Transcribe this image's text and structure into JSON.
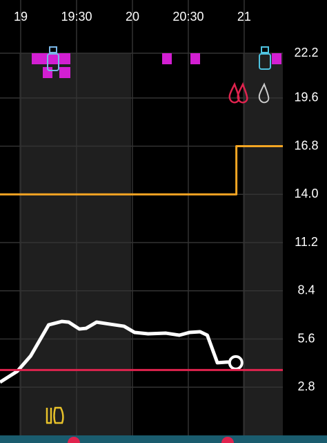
{
  "chart_data": {
    "type": "line",
    "xlim": [
      18.815,
      21.346
    ],
    "xticks": [
      19,
      {
        "value": 19.5,
        "label": "19:30"
      },
      20,
      {
        "value": 20.5,
        "label": "20:30"
      },
      21
    ],
    "ylim": [
      0,
      22.2
    ],
    "yticks": [
      22.2,
      19.6,
      16.8,
      {
        "value": 14,
        "label": "14.0"
      },
      11.2,
      8.4,
      5.6,
      2.8
    ],
    "grid": true,
    "series": [
      {
        "color": "#ffffff",
        "x": [
          18.815,
          18.97,
          19.09,
          19.25,
          19.37,
          19.43,
          19.525,
          19.585,
          19.68,
          19.8,
          19.925,
          20.02,
          20.14,
          20.3,
          20.42,
          20.51,
          20.605,
          20.67,
          20.76,
          20.85,
          20.925
        ],
        "values": [
          3.09,
          3.73,
          4.62,
          6.42,
          6.62,
          6.58,
          6.18,
          6.22,
          6.58,
          6.46,
          6.34,
          5.98,
          5.9,
          5.94,
          5.82,
          5.98,
          6.02,
          5.82,
          4.22,
          4.26,
          4.22
        ]
      },
      {
        "color": "#f5a623",
        "x": [
          18.815,
          20.93,
          20.93,
          21.346
        ],
        "values": [
          14,
          14,
          16.8,
          16.8
        ]
      },
      {
        "color": "#e0234e",
        "x": [
          18.815,
          21.346
        ],
        "values": [
          3.8,
          3.8
        ]
      }
    ]
  }
}
